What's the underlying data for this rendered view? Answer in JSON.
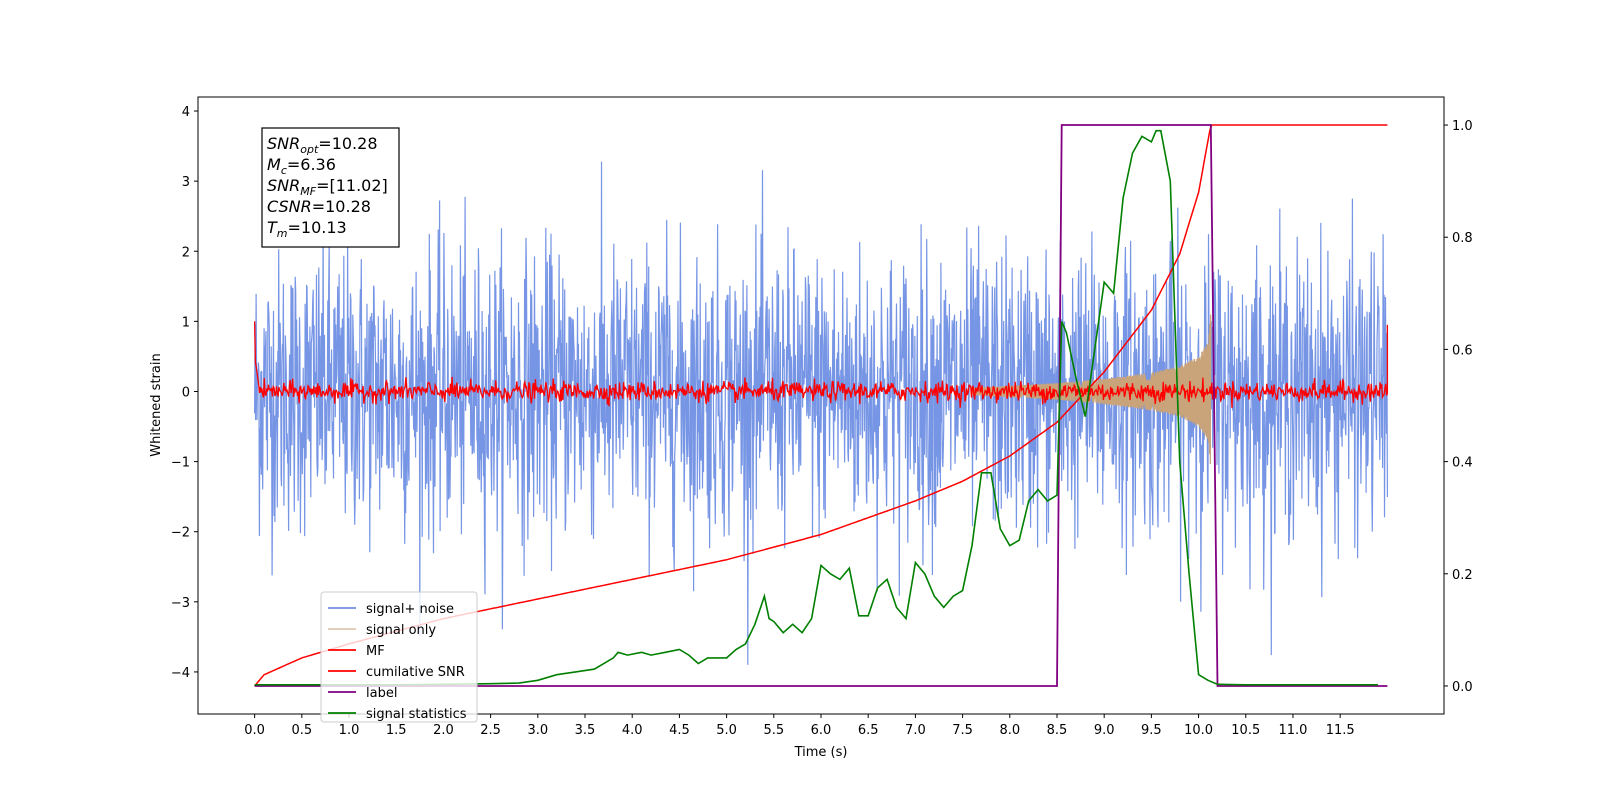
{
  "chart_data": {
    "type": "line",
    "title": "",
    "xlabel": "Time (s)",
    "ylabel": "Whitened strain",
    "xlim": [
      -0.6,
      12.6
    ],
    "ylim": [
      -4.6,
      4.2
    ],
    "y2lim": [
      -0.05,
      1.05
    ],
    "xticks": [
      "0.0",
      "0.5",
      "1.0",
      "1.5",
      "2.0",
      "2.5",
      "3.0",
      "3.5",
      "4.0",
      "4.5",
      "5.0",
      "5.5",
      "6.0",
      "6.5",
      "7.0",
      "7.5",
      "8.0",
      "8.5",
      "9.0",
      "9.5",
      "10.0",
      "10.5",
      "11.0",
      "11.5"
    ],
    "yticks": [
      "4",
      "3",
      "2",
      "1",
      "0",
      "−1",
      "−2",
      "−3",
      "−4"
    ],
    "y2ticks": [
      "1.0",
      "0.8",
      "0.6",
      "0.4",
      "0.2",
      "0.0"
    ],
    "colors": {
      "noise": "#6f8fe4",
      "signal": "#c9a37a",
      "mf": "#ff0000",
      "csnr": "#ff0000",
      "label": "#800080",
      "stat": "#008000"
    },
    "info_box": {
      "snr_opt": "=10.28",
      "mc": "=6.36",
      "snr_mf": "=[11.02]",
      "csnr": "=10.28",
      "tm": "=10.13"
    },
    "legend": {
      "placement": "lower-left",
      "entries": [
        "signal+ noise",
        "signal only",
        "MF",
        "cumilative SNR",
        "label",
        "signal statistics"
      ]
    },
    "series": [
      {
        "name": "label",
        "axis": "right",
        "x": [
          0.0,
          8.5,
          8.55,
          10.13,
          10.2,
          12.0
        ],
        "y": [
          0.0,
          0.0,
          1.0,
          1.0,
          0.0,
          0.0
        ]
      },
      {
        "name": "cumilative SNR",
        "axis": "right",
        "x": [
          0.0,
          0.1,
          0.5,
          1.0,
          2.0,
          3.0,
          4.0,
          5.0,
          6.0,
          7.0,
          7.5,
          8.0,
          8.5,
          9.0,
          9.5,
          9.8,
          10.0,
          10.13,
          12.0
        ],
        "y": [
          0.0,
          0.02,
          0.05,
          0.075,
          0.12,
          0.155,
          0.19,
          0.225,
          0.27,
          0.33,
          0.365,
          0.41,
          0.47,
          0.56,
          0.67,
          0.77,
          0.88,
          1.0,
          1.0
        ]
      },
      {
        "name": "signal statistics",
        "axis": "right",
        "x": [
          0.0,
          0.5,
          1.0,
          1.5,
          2.0,
          2.5,
          2.8,
          3.0,
          3.2,
          3.4,
          3.6,
          3.8,
          3.85,
          3.95,
          4.1,
          4.2,
          4.35,
          4.5,
          4.6,
          4.7,
          4.8,
          5.0,
          5.1,
          5.2,
          5.3,
          5.4,
          5.45,
          5.5,
          5.6,
          5.7,
          5.8,
          5.9,
          6.0,
          6.1,
          6.2,
          6.3,
          6.4,
          6.5,
          6.6,
          6.7,
          6.8,
          6.9,
          7.0,
          7.1,
          7.2,
          7.3,
          7.4,
          7.5,
          7.6,
          7.7,
          7.8,
          7.9,
          8.0,
          8.1,
          8.2,
          8.3,
          8.4,
          8.5,
          8.55,
          8.6,
          8.7,
          8.8,
          8.9,
          9.0,
          9.1,
          9.2,
          9.3,
          9.4,
          9.5,
          9.55,
          9.6,
          9.7,
          9.8,
          9.9,
          10.0,
          10.1,
          10.2,
          10.5,
          11.0,
          11.5,
          11.9
        ],
        "y": [
          0.002,
          0.002,
          0.002,
          0.002,
          0.003,
          0.004,
          0.005,
          0.01,
          0.02,
          0.025,
          0.03,
          0.05,
          0.06,
          0.055,
          0.06,
          0.055,
          0.06,
          0.065,
          0.055,
          0.04,
          0.05,
          0.05,
          0.065,
          0.075,
          0.11,
          0.16,
          0.12,
          0.115,
          0.095,
          0.11,
          0.095,
          0.12,
          0.215,
          0.2,
          0.19,
          0.21,
          0.125,
          0.125,
          0.175,
          0.19,
          0.14,
          0.12,
          0.22,
          0.2,
          0.16,
          0.14,
          0.16,
          0.17,
          0.25,
          0.38,
          0.38,
          0.28,
          0.25,
          0.26,
          0.33,
          0.35,
          0.33,
          0.34,
          0.65,
          0.63,
          0.55,
          0.48,
          0.6,
          0.72,
          0.7,
          0.87,
          0.95,
          0.98,
          0.97,
          0.99,
          0.99,
          0.9,
          0.4,
          0.2,
          0.02,
          0.01,
          0.003,
          0.002,
          0.002,
          0.002,
          0.002
        ]
      },
      {
        "name": "MF",
        "axis": "left",
        "x": [
          0.0,
          12.0
        ],
        "y": [
          0.0,
          0.0
        ]
      },
      {
        "name": "signal only",
        "axis": "left",
        "x": [
          7.6,
          8.5,
          9.0,
          9.5,
          9.8,
          10.0,
          10.1,
          10.13
        ],
        "y": [
          0.05,
          0.12,
          0.18,
          0.27,
          0.36,
          0.5,
          0.7,
          1.15
        ]
      },
      {
        "name": "signal+ noise",
        "axis": "left",
        "x": [
          0.0,
          12.0
        ],
        "y": [
          -1.0,
          1.0
        ]
      }
    ]
  }
}
